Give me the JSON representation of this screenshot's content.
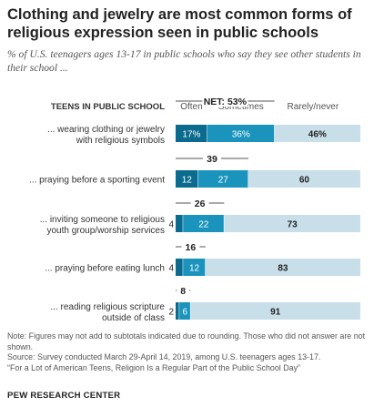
{
  "title": "Clothing and jewelry are most common forms of religious expression seen in public schools",
  "subtitle": "% of U.S. teenagers ages 13-17 in public schools who say they see other students in their school ...",
  "chart_data": {
    "type": "bar",
    "stacked": true,
    "orientation": "horizontal",
    "row_header": "TEENS IN PUBLIC SCHOOL",
    "net_label_prefix": "NET: ",
    "net_label_suffix": "%",
    "value_suffix_first_row": "%",
    "xlim": [
      0,
      100
    ],
    "categories": [
      [
        "... wearing clothing or jewelry",
        "with religious symbols"
      ],
      [
        "... praying before a sporting event"
      ],
      [
        "... inviting someone to religious",
        "youth group/worship services"
      ],
      [
        "... praying before eating lunch"
      ],
      [
        "... reading religious scripture",
        "outside of class"
      ]
    ],
    "series": [
      {
        "name": "Often",
        "values": [
          17,
          12,
          4,
          4,
          2
        ]
      },
      {
        "name": "Sometimes",
        "values": [
          36,
          27,
          22,
          12,
          6
        ]
      },
      {
        "name": "Rarely/never",
        "values": [
          46,
          60,
          73,
          83,
          91
        ]
      }
    ],
    "net": [
      53,
      39,
      26,
      16,
      8
    ],
    "colors": {
      "often": "#0b6b8e",
      "sometimes": "#1a94bd",
      "rarely_never": "#c8dfe9",
      "label_light": "#ffffff",
      "label_dark": "#222222"
    }
  },
  "notes": [
    "Note: Figures may not add to subtotals indicated due to rounding. Those who did not answer are not shown.",
    "Source: Survey conducted March 29-April 14, 2019, among U.S. teenagers ages 13-17.",
    "“For a Lot of American Teens, Religion Is a Regular Part of the Public School Day”"
  ],
  "footer": "PEW RESEARCH CENTER"
}
